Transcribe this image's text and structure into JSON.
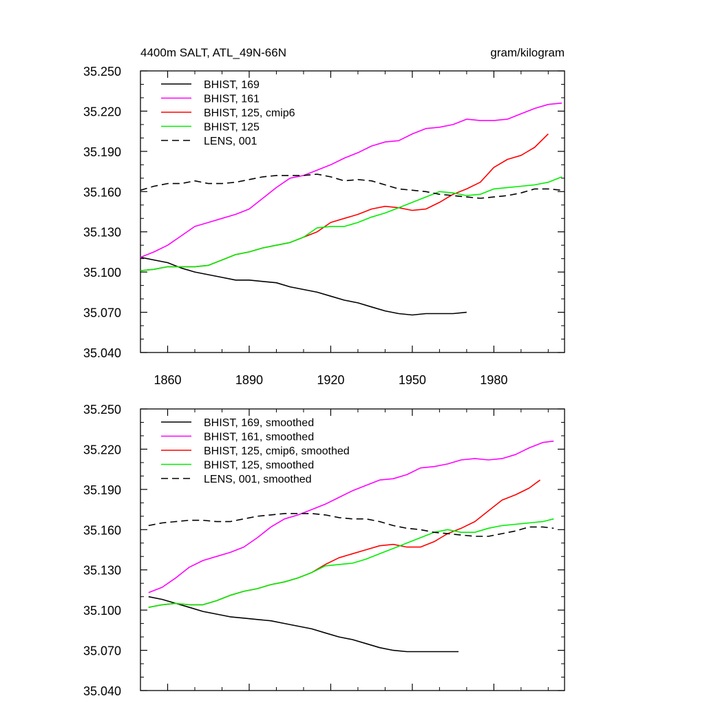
{
  "chart_data": [
    {
      "type": "line",
      "title_left": "4400m SALT, ATL_49N-66N",
      "title_right": "gram/kilogram",
      "xlabel": "",
      "ylabel": "",
      "xlim": [
        1850,
        2006
      ],
      "ylim": [
        35.04,
        35.25
      ],
      "x_ticks": [
        1860,
        1890,
        1920,
        1950,
        1980
      ],
      "x_tick_labels": [
        "1860",
        "1890",
        "1920",
        "1950",
        "1980"
      ],
      "y_ticks": [
        35.04,
        35.07,
        35.1,
        35.13,
        35.16,
        35.19,
        35.22,
        35.25
      ],
      "y_tick_labels": [
        "35.040",
        "35.070",
        "35.100",
        "35.130",
        "35.160",
        "35.190",
        "35.220",
        "35.250"
      ],
      "legend_position": "top-left",
      "series": [
        {
          "name": "BHIST, 169",
          "color": "#000000",
          "dash": "solid",
          "x": [
            1850,
            1855,
            1860,
            1865,
            1870,
            1875,
            1880,
            1885,
            1890,
            1895,
            1900,
            1905,
            1910,
            1915,
            1920,
            1925,
            1930,
            1935,
            1940,
            1945,
            1950,
            1955,
            1960,
            1965,
            1970
          ],
          "y": [
            35.111,
            35.109,
            35.107,
            35.103,
            35.1,
            35.098,
            35.096,
            35.094,
            35.094,
            35.093,
            35.092,
            35.089,
            35.087,
            35.085,
            35.082,
            35.079,
            35.077,
            35.074,
            35.071,
            35.069,
            35.068,
            35.069,
            35.069,
            35.069,
            35.07
          ]
        },
        {
          "name": "BHIST, 161",
          "color": "#ff00ff",
          "dash": "solid",
          "x": [
            1850,
            1855,
            1860,
            1865,
            1870,
            1875,
            1880,
            1885,
            1890,
            1895,
            1900,
            1905,
            1910,
            1915,
            1920,
            1925,
            1930,
            1935,
            1940,
            1945,
            1950,
            1955,
            1960,
            1965,
            1970,
            1975,
            1980,
            1985,
            1990,
            1995,
            2000,
            2005
          ],
          "y": [
            35.111,
            35.115,
            35.12,
            35.127,
            35.134,
            35.137,
            35.14,
            35.143,
            35.147,
            35.155,
            35.163,
            35.17,
            35.172,
            35.176,
            35.18,
            35.185,
            35.189,
            35.194,
            35.197,
            35.198,
            35.203,
            35.207,
            35.208,
            35.21,
            35.214,
            35.213,
            35.213,
            35.214,
            35.218,
            35.222,
            35.225,
            35.226
          ]
        },
        {
          "name": "BHIST, 125, cmip6",
          "color": "#ff0000",
          "dash": "solid",
          "x": [
            1850,
            1855,
            1860,
            1865,
            1870,
            1875,
            1880,
            1885,
            1890,
            1895,
            1900,
            1905,
            1910,
            1915,
            1920,
            1925,
            1930,
            1935,
            1940,
            1945,
            1950,
            1955,
            1960,
            1965,
            1970,
            1975,
            1980,
            1985,
            1990,
            1995,
            2000
          ],
          "y": [
            35.101,
            35.102,
            35.104,
            35.104,
            35.104,
            35.105,
            35.109,
            35.113,
            35.115,
            35.118,
            35.12,
            35.122,
            35.126,
            35.13,
            35.137,
            35.14,
            35.143,
            35.147,
            35.149,
            35.148,
            35.146,
            35.147,
            35.152,
            35.158,
            35.162,
            35.167,
            35.178,
            35.184,
            35.187,
            35.193,
            35.203
          ]
        },
        {
          "name": "BHIST, 125",
          "color": "#00ee00",
          "dash": "solid",
          "x": [
            1850,
            1855,
            1860,
            1865,
            1870,
            1875,
            1880,
            1885,
            1890,
            1895,
            1900,
            1905,
            1910,
            1915,
            1920,
            1925,
            1930,
            1935,
            1940,
            1945,
            1950,
            1955,
            1960,
            1965,
            1970,
            1975,
            1980,
            1985,
            1990,
            1995,
            2000,
            2005
          ],
          "y": [
            35.101,
            35.102,
            35.104,
            35.104,
            35.104,
            35.105,
            35.109,
            35.113,
            35.115,
            35.118,
            35.12,
            35.122,
            35.126,
            35.133,
            35.134,
            35.134,
            35.137,
            35.141,
            35.144,
            35.148,
            35.152,
            35.156,
            35.16,
            35.159,
            35.157,
            35.158,
            35.162,
            35.163,
            35.164,
            35.165,
            35.167,
            35.171
          ]
        },
        {
          "name": "LENS, 001",
          "color": "#000000",
          "dash": "dashed",
          "x": [
            1850,
            1855,
            1860,
            1865,
            1870,
            1875,
            1880,
            1885,
            1890,
            1895,
            1900,
            1905,
            1910,
            1915,
            1920,
            1925,
            1930,
            1935,
            1940,
            1945,
            1950,
            1955,
            1960,
            1965,
            1970,
            1975,
            1980,
            1985,
            1990,
            1995,
            2000,
            2005
          ],
          "y": [
            35.161,
            35.164,
            35.166,
            35.166,
            35.168,
            35.166,
            35.166,
            35.167,
            35.169,
            35.171,
            35.172,
            35.172,
            35.172,
            35.173,
            35.171,
            35.168,
            35.169,
            35.168,
            35.165,
            35.162,
            35.161,
            35.16,
            35.158,
            35.157,
            35.156,
            35.155,
            35.156,
            35.157,
            35.159,
            35.162,
            35.162,
            35.161
          ]
        }
      ]
    },
    {
      "type": "line",
      "xlabel": "",
      "ylabel": "",
      "xlim": [
        1850,
        2006
      ],
      "ylim": [
        35.04,
        35.25
      ],
      "x_ticks": [
        1860,
        1890,
        1920,
        1950,
        1980
      ],
      "x_tick_labels": [],
      "y_ticks": [
        35.04,
        35.07,
        35.1,
        35.13,
        35.16,
        35.19,
        35.22,
        35.25
      ],
      "y_tick_labels": [
        "35.040",
        "35.070",
        "35.100",
        "35.130",
        "35.160",
        "35.190",
        "35.220",
        "35.250"
      ],
      "legend_position": "top-left",
      "series": [
        {
          "name": "BHIST, 169, smoothed",
          "color": "#000000",
          "dash": "solid",
          "x": [
            1853,
            1858,
            1863,
            1868,
            1873,
            1878,
            1883,
            1888,
            1893,
            1898,
            1903,
            1908,
            1913,
            1918,
            1923,
            1928,
            1933,
            1938,
            1943,
            1948,
            1953,
            1958,
            1963,
            1967
          ],
          "y": [
            35.11,
            35.108,
            35.105,
            35.102,
            35.099,
            35.097,
            35.095,
            35.094,
            35.093,
            35.092,
            35.09,
            35.088,
            35.086,
            35.083,
            35.08,
            35.078,
            35.075,
            35.072,
            35.07,
            35.069,
            35.069,
            35.069,
            35.069,
            35.069
          ]
        },
        {
          "name": "BHIST, 161, smoothed",
          "color": "#ff00ff",
          "dash": "solid",
          "x": [
            1853,
            1858,
            1863,
            1868,
            1873,
            1878,
            1883,
            1888,
            1893,
            1898,
            1903,
            1908,
            1913,
            1918,
            1923,
            1928,
            1933,
            1938,
            1943,
            1948,
            1953,
            1958,
            1963,
            1968,
            1973,
            1978,
            1983,
            1988,
            1993,
            1998,
            2002
          ],
          "y": [
            35.113,
            35.117,
            35.124,
            35.132,
            35.137,
            35.14,
            35.143,
            35.147,
            35.154,
            35.162,
            35.168,
            35.171,
            35.175,
            35.179,
            35.184,
            35.189,
            35.193,
            35.197,
            35.198,
            35.201,
            35.206,
            35.207,
            35.209,
            35.212,
            35.213,
            35.212,
            35.213,
            35.216,
            35.221,
            35.225,
            35.226
          ]
        },
        {
          "name": "BHIST, 125, cmip6, smoothed",
          "color": "#ff0000",
          "dash": "solid",
          "x": [
            1853,
            1858,
            1863,
            1868,
            1873,
            1878,
            1883,
            1888,
            1893,
            1898,
            1903,
            1908,
            1913,
            1918,
            1923,
            1928,
            1933,
            1938,
            1943,
            1948,
            1953,
            1958,
            1963,
            1968,
            1973,
            1978,
            1983,
            1988,
            1993,
            1997
          ],
          "y": [
            35.102,
            35.104,
            35.105,
            35.104,
            35.104,
            35.107,
            35.111,
            35.114,
            35.116,
            35.119,
            35.121,
            35.124,
            35.128,
            35.134,
            35.139,
            35.142,
            35.145,
            35.148,
            35.149,
            35.147,
            35.147,
            35.151,
            35.157,
            35.161,
            35.166,
            35.174,
            35.182,
            35.186,
            35.191,
            35.197
          ]
        },
        {
          "name": "BHIST, 125, smoothed",
          "color": "#00ee00",
          "dash": "solid",
          "x": [
            1853,
            1858,
            1863,
            1868,
            1873,
            1878,
            1883,
            1888,
            1893,
            1898,
            1903,
            1908,
            1913,
            1918,
            1923,
            1928,
            1933,
            1938,
            1943,
            1948,
            1953,
            1958,
            1963,
            1968,
            1973,
            1978,
            1983,
            1988,
            1993,
            1998,
            2002
          ],
          "y": [
            35.102,
            35.104,
            35.105,
            35.104,
            35.104,
            35.107,
            35.111,
            35.114,
            35.116,
            35.119,
            35.121,
            35.124,
            35.128,
            35.133,
            35.134,
            35.135,
            35.138,
            35.142,
            35.146,
            35.15,
            35.154,
            35.158,
            35.16,
            35.158,
            35.158,
            35.161,
            35.163,
            35.164,
            35.165,
            35.166,
            35.168
          ]
        },
        {
          "name": "LENS, 001, smoothed",
          "color": "#000000",
          "dash": "dashed",
          "x": [
            1853,
            1858,
            1863,
            1868,
            1873,
            1878,
            1883,
            1888,
            1893,
            1898,
            1903,
            1908,
            1913,
            1918,
            1923,
            1928,
            1933,
            1938,
            1943,
            1948,
            1953,
            1958,
            1963,
            1968,
            1973,
            1978,
            1983,
            1988,
            1993,
            1998,
            2002
          ],
          "y": [
            35.163,
            35.165,
            35.166,
            35.167,
            35.167,
            35.166,
            35.166,
            35.168,
            35.17,
            35.171,
            35.172,
            35.172,
            35.172,
            35.171,
            35.169,
            35.168,
            35.168,
            35.166,
            35.163,
            35.161,
            35.16,
            35.158,
            35.157,
            35.156,
            35.155,
            35.155,
            35.157,
            35.159,
            35.162,
            35.162,
            35.161
          ]
        }
      ]
    }
  ]
}
